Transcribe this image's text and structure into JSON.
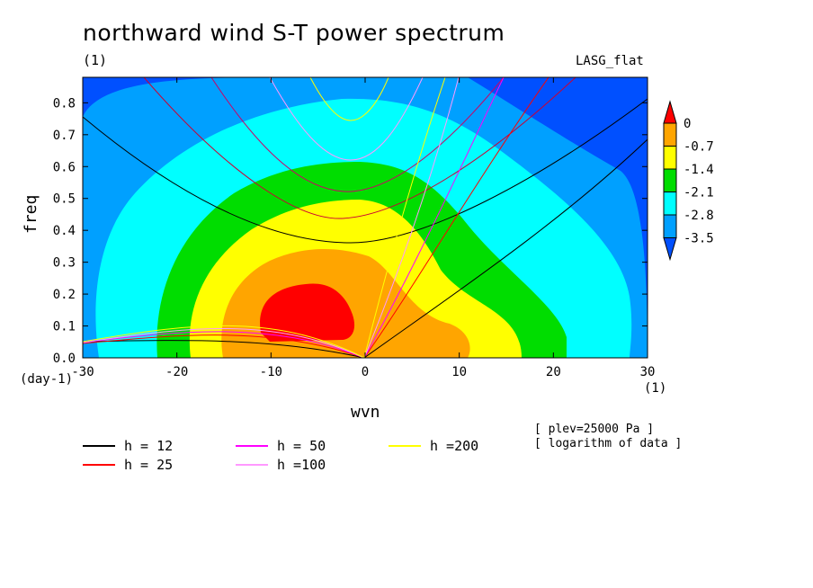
{
  "title": "northward wind S-T power spectrum",
  "unit_top": "(1)",
  "label_right": "LASG_flat",
  "chart_data": {
    "type": "heatmap",
    "xlabel": "wvn",
    "ylabel": "freq",
    "x_unit_left": "(day-1)",
    "x_unit_right": "(1)",
    "xlim": [
      -30,
      30
    ],
    "ylim": [
      0,
      0.88
    ],
    "x_ticks": [
      "-30",
      "-20",
      "-10",
      "0",
      "10",
      "20",
      "30"
    ],
    "y_ticks": [
      "0.0",
      "0.1",
      "0.2",
      "0.3",
      "0.4",
      "0.5",
      "0.6",
      "0.7",
      "0.8"
    ],
    "colorbar": {
      "levels": [
        "0",
        "-0.7",
        "-1.4",
        "-2.1",
        "-2.8",
        "-3.5"
      ],
      "colors": [
        "#ff0000",
        "#ffa500",
        "#ffff00",
        "#00dd00",
        "#00ffff",
        "#00a0ff",
        "#0050ff"
      ]
    },
    "dispersion_curves": [
      {
        "name": "h = 12",
        "color": "#000000"
      },
      {
        "name": "h = 25",
        "color": "#ff0000"
      },
      {
        "name": "h = 50",
        "color": "#ff00ff"
      },
      {
        "name": "h =100",
        "color": "#ff99ff"
      },
      {
        "name": "h =200",
        "color": "#ffff00"
      }
    ],
    "notes": [
      "[ plev=25000 Pa ]",
      "[ logarithm of data ]"
    ]
  }
}
